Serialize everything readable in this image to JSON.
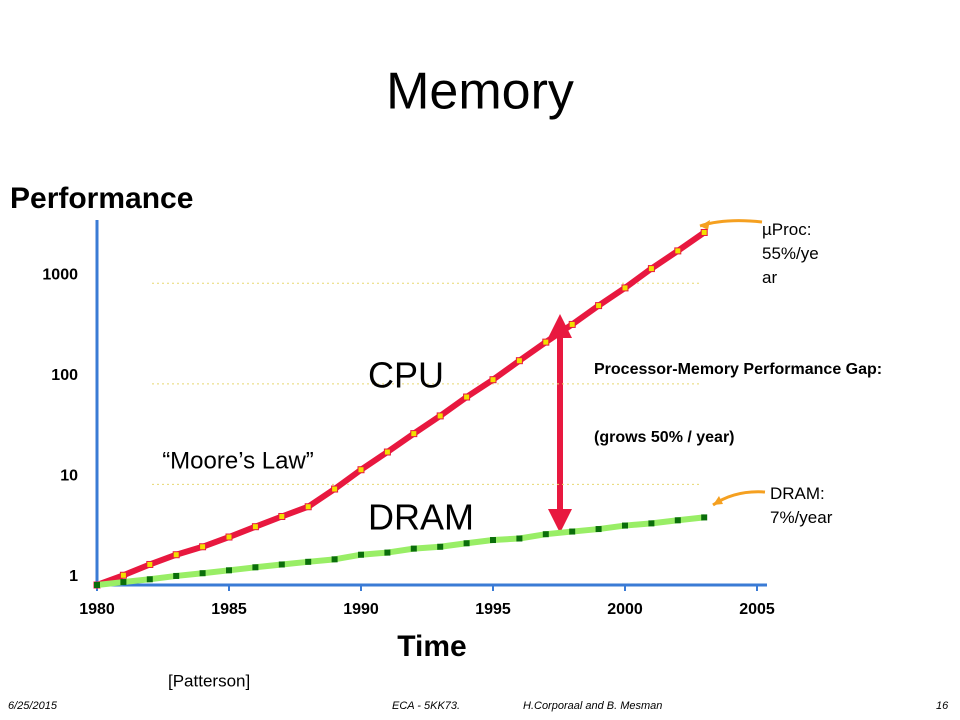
{
  "chart_data": {
    "type": "line",
    "title": "Memory",
    "y_label": "Performance",
    "x_label": "Time",
    "x": [
      1980,
      1981,
      1982,
      1983,
      1984,
      1985,
      1986,
      1987,
      1988,
      1989,
      1990,
      1991,
      1992,
      1993,
      1994,
      1995,
      1996,
      1997,
      1998,
      1999,
      2000,
      2001,
      2002,
      2003
    ],
    "series": [
      {
        "name": "CPU",
        "color": "#e8183f",
        "marker_color": "#f2e000",
        "values": [
          1,
          1.25,
          1.6,
          2,
          2.4,
          3,
          3.8,
          4.8,
          6,
          9,
          14,
          21,
          32,
          48,
          74,
          110,
          170,
          260,
          390,
          600,
          900,
          1400,
          2100,
          3200
        ]
      },
      {
        "name": "DRAM",
        "color": "#99ee66",
        "marker_color": "#0a6e0a",
        "values": [
          1,
          1.07,
          1.14,
          1.23,
          1.31,
          1.4,
          1.5,
          1.6,
          1.7,
          1.8,
          2,
          2.1,
          2.3,
          2.4,
          2.6,
          2.8,
          2.9,
          3.2,
          3.4,
          3.6,
          3.9,
          4.1,
          4.4,
          4.7
        ]
      }
    ],
    "xlim": [
      1980,
      2005
    ],
    "xticks": [
      1980,
      1985,
      1990,
      1995,
      2000,
      2005
    ],
    "ylim": [
      1,
      5000
    ],
    "yticks": [
      1,
      10,
      100,
      1000
    ],
    "log_y": true,
    "grid": true,
    "annotations": [
      "“Moore’s Law”",
      "Processor-Memory Performance Gap:",
      "(grows 50% / year)",
      "µProc: 55%/year",
      "DRAM: 7%/year",
      "[Patterson]"
    ]
  },
  "footer": {
    "date": "6/25/2015",
    "course": "ECA - 5KK73.",
    "authors": "H.Corporaal  and B. Mesman",
    "page": 16
  }
}
